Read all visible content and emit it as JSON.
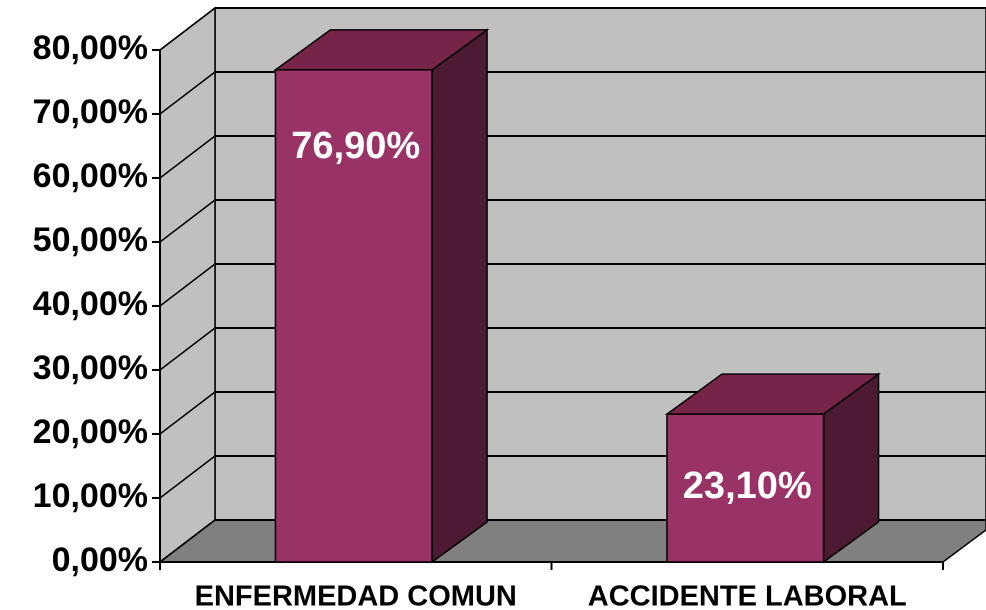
{
  "chart_data": {
    "type": "bar3d",
    "categories": [
      "ENFERMEDAD COMUN",
      "ACCIDENTE LABORAL"
    ],
    "values": [
      76.9,
      23.1
    ],
    "value_labels": [
      "76,90%",
      "23,10%"
    ],
    "color": "#993366",
    "ylim": [
      0,
      80
    ],
    "yticks": [
      {
        "value": 0,
        "label": "0,00%"
      },
      {
        "value": 10,
        "label": "10,00%"
      },
      {
        "value": 20,
        "label": "20,00%"
      },
      {
        "value": 30,
        "label": "30,00%"
      },
      {
        "value": 40,
        "label": "40,00%"
      },
      {
        "value": 50,
        "label": "50,00%"
      },
      {
        "value": 60,
        "label": "60,00%"
      },
      {
        "value": 70,
        "label": "70,00%"
      },
      {
        "value": 80,
        "label": "80,00%"
      }
    ],
    "grid": true
  }
}
